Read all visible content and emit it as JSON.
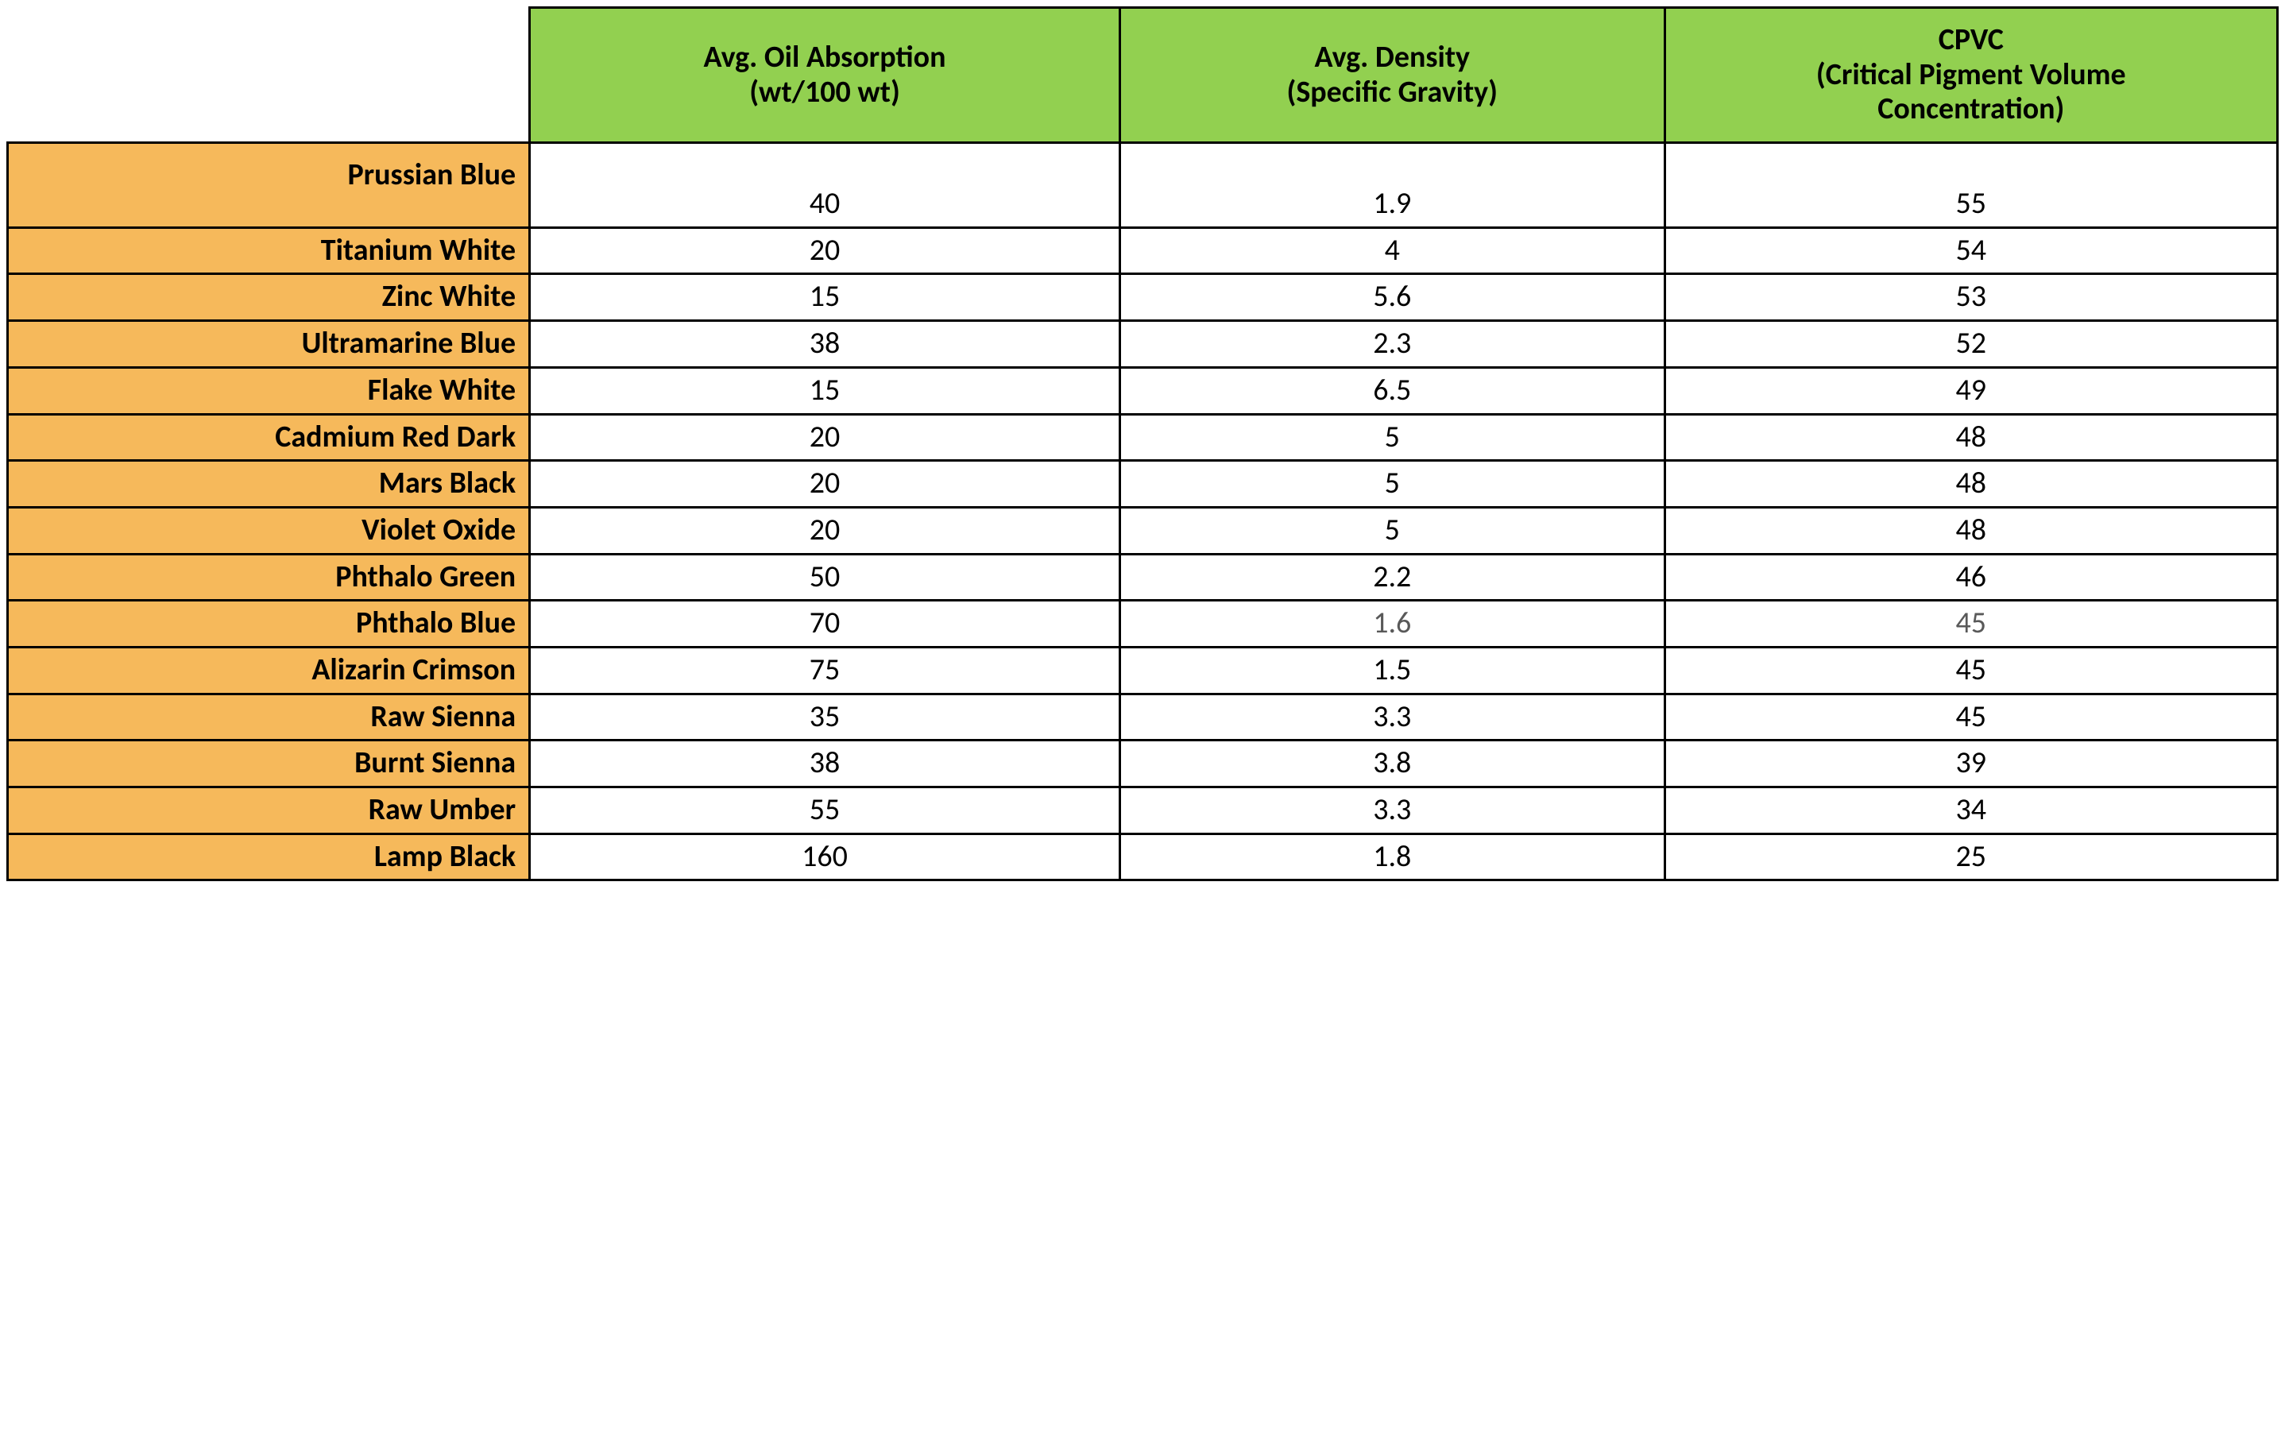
{
  "colors": {
    "header_bg": "#92d050",
    "rowhead_bg": "#f6b95b",
    "border": "#000000",
    "cell_bg": "#ffffff",
    "text": "#000000",
    "muted_text": "#595959"
  },
  "fonts": {
    "family": "Calibri, 'Segoe UI', Arial, sans-serif",
    "header_size_pt": 28,
    "body_size_pt": 28,
    "header_weight": 700,
    "rowhead_weight": 700,
    "body_weight": 400
  },
  "table": {
    "type": "table",
    "column_widths_pct": [
      23,
      26,
      24,
      27
    ],
    "columns": [
      {
        "key": "oil",
        "label_lines": [
          "Avg. Oil Absorption",
          "(wt/100 wt)"
        ]
      },
      {
        "key": "den",
        "label_lines": [
          "Avg. Density",
          "(Specific Gravity)"
        ]
      },
      {
        "key": "cpvc",
        "label_lines": [
          "CPVC",
          "(Critical Pigment Volume",
          "Concentration)"
        ]
      }
    ],
    "rows": [
      {
        "name": "Prussian Blue",
        "oil": "40",
        "den": "1.9",
        "cpvc": "55"
      },
      {
        "name": "Titanium White",
        "oil": "20",
        "den": "4",
        "cpvc": "54"
      },
      {
        "name": "Zinc White",
        "oil": "15",
        "den": "5.6",
        "cpvc": "53"
      },
      {
        "name": "Ultramarine Blue",
        "oil": "38",
        "den": "2.3",
        "cpvc": "52"
      },
      {
        "name": "Flake White",
        "oil": "15",
        "den": "6.5",
        "cpvc": "49"
      },
      {
        "name": "Cadmium Red Dark",
        "oil": "20",
        "den": "5",
        "cpvc": "48"
      },
      {
        "name": "Mars Black",
        "oil": "20",
        "den": "5",
        "cpvc": "48"
      },
      {
        "name": "Violet Oxide",
        "oil": "20",
        "den": "5",
        "cpvc": "48"
      },
      {
        "name": "Phthalo Green",
        "oil": "50",
        "den": "2.2",
        "cpvc": "46"
      },
      {
        "name": "Phthalo Blue",
        "oil": "70",
        "den": "1.6",
        "cpvc": "45",
        "muted_cols": [
          "den",
          "cpvc"
        ]
      },
      {
        "name": "Alizarin Crimson",
        "oil": "75",
        "den": "1.5",
        "cpvc": "45"
      },
      {
        "name": "Raw Sienna",
        "oil": "35",
        "den": "3.3",
        "cpvc": "45"
      },
      {
        "name": "Burnt Sienna",
        "oil": "38",
        "den": "3.8",
        "cpvc": "39"
      },
      {
        "name": "Raw Umber",
        "oil": "55",
        "den": "3.3",
        "cpvc": "34"
      },
      {
        "name": "Lamp Black",
        "oil": "160",
        "den": "1.8",
        "cpvc": "25"
      }
    ]
  }
}
